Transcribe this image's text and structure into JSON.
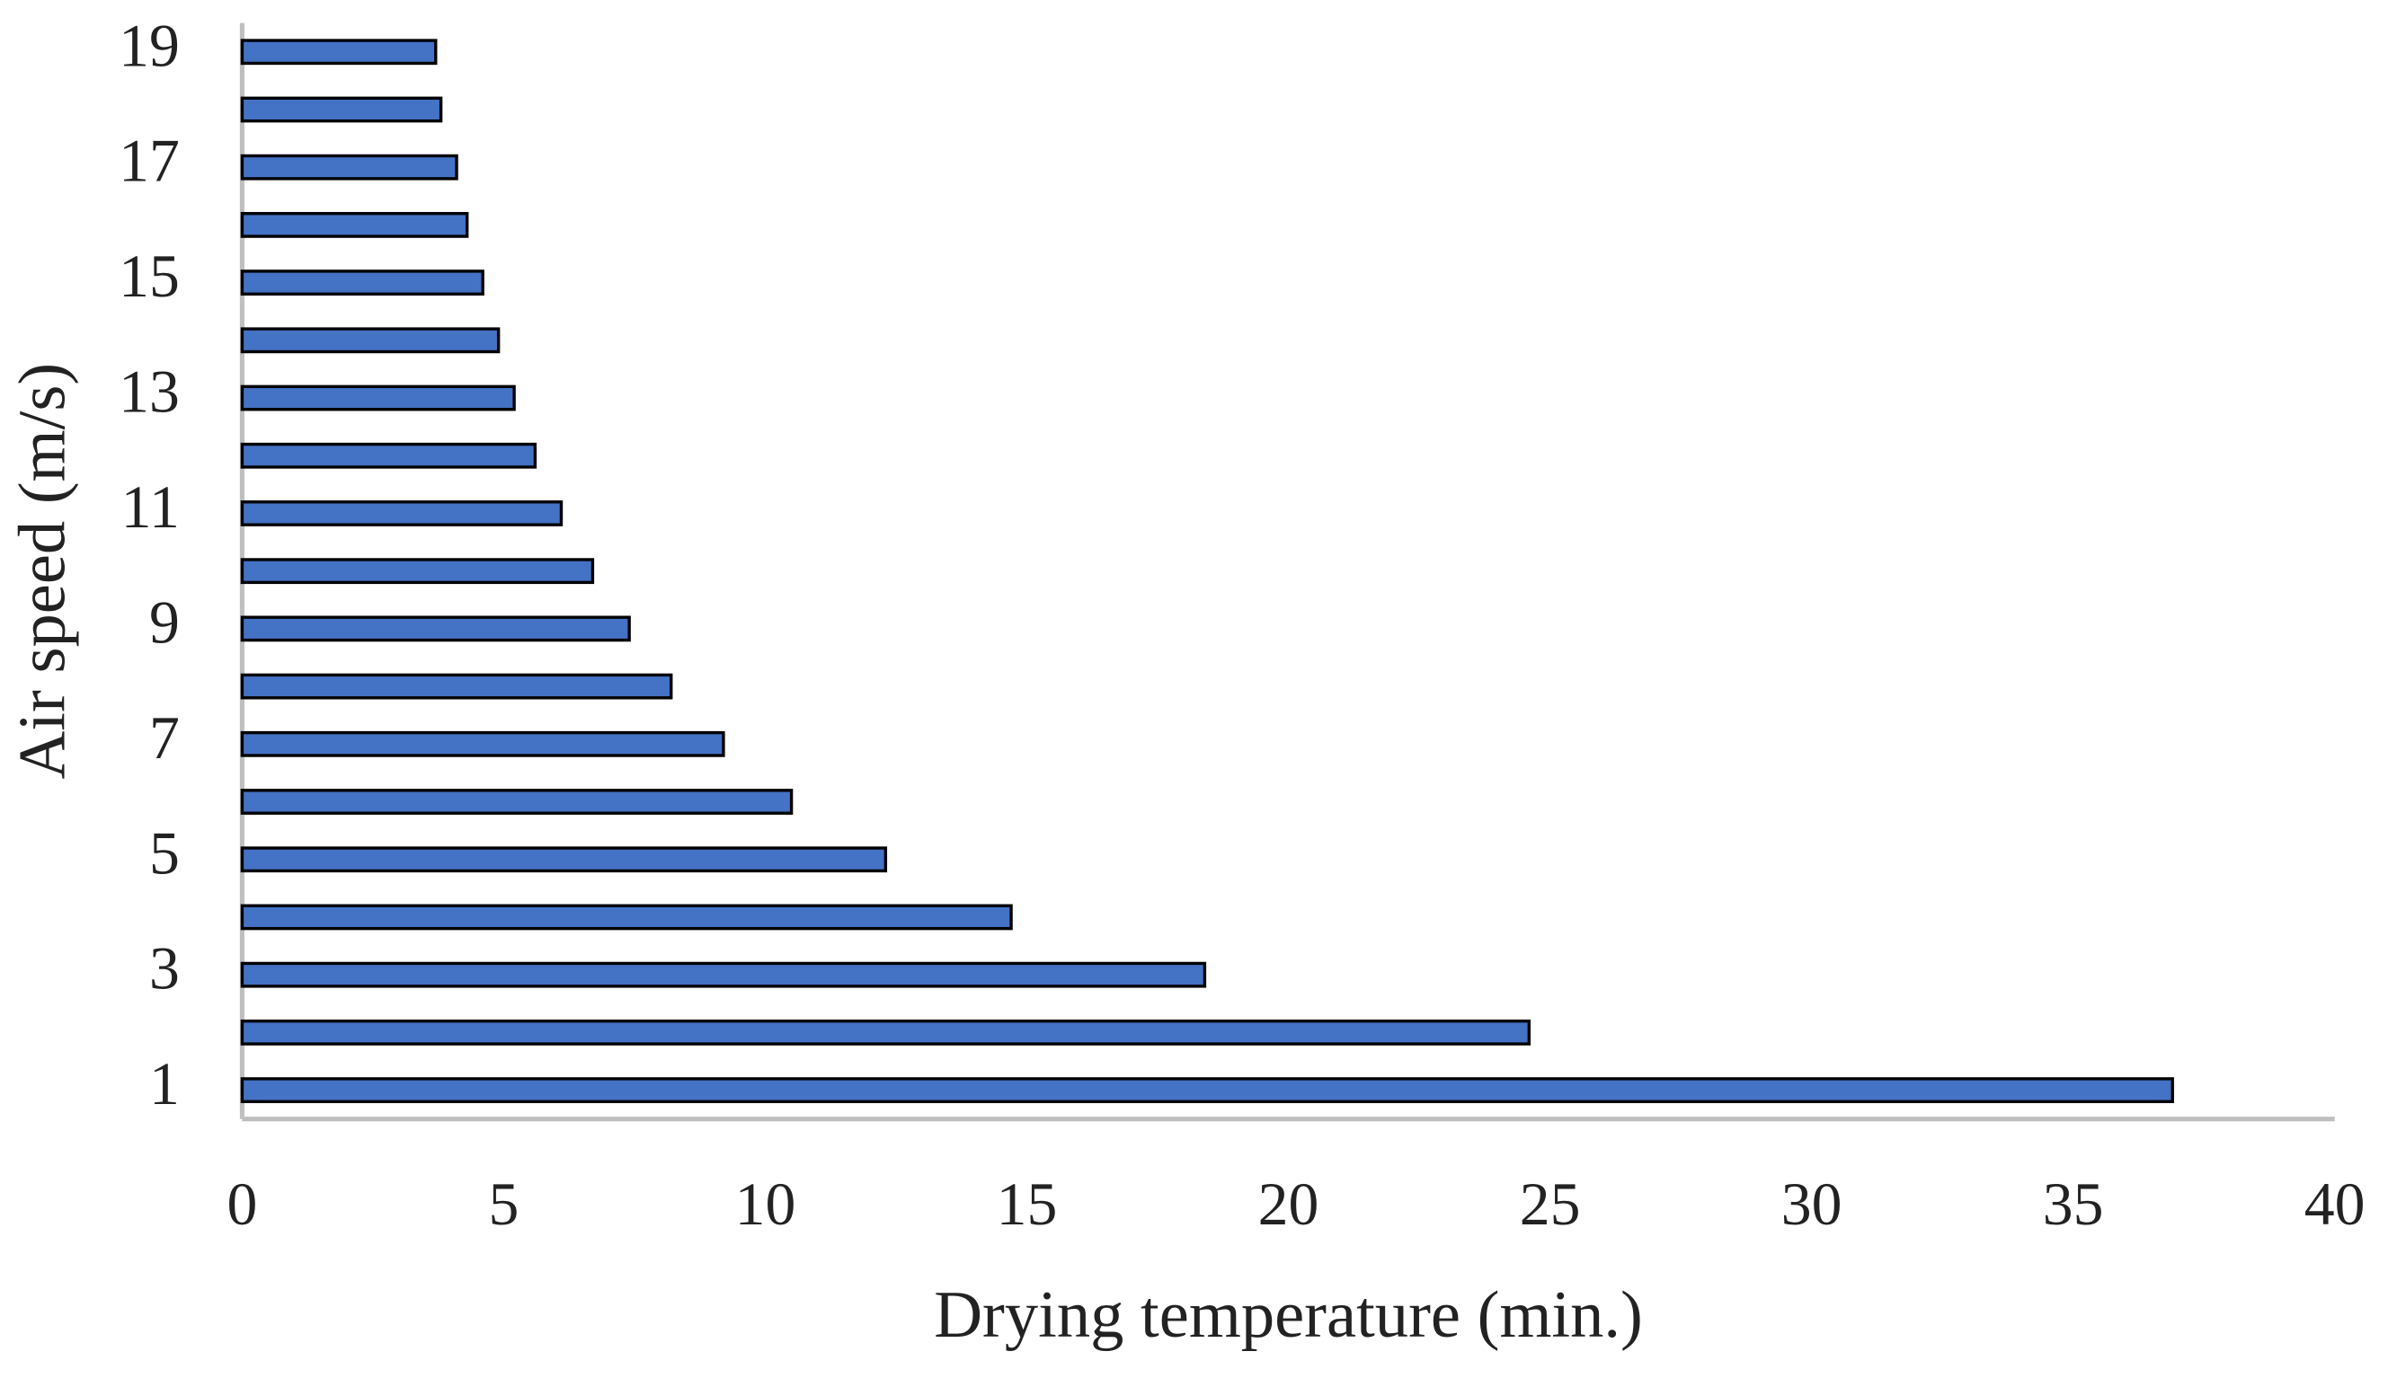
{
  "chart_data": {
    "type": "bar",
    "orientation": "horizontal",
    "x_label": "Drying temperature (min.)",
    "y_label": "Air speed (m/s)",
    "categories": [
      "1",
      null,
      "3",
      null,
      "5",
      null,
      "7",
      null,
      "9",
      null,
      "11",
      null,
      "13",
      null,
      "15",
      null,
      "17",
      null,
      "19"
    ],
    "values": [
      36.9,
      24.6,
      18.4,
      14.7,
      12.3,
      10.5,
      9.2,
      8.2,
      7.4,
      6.7,
      6.1,
      5.6,
      5.2,
      4.9,
      4.6,
      4.3,
      4.1,
      3.8,
      3.7
    ],
    "color": "#4472c4",
    "xlim": [
      0,
      40
    ],
    "xticks": [
      0,
      5,
      10,
      15,
      20,
      25,
      30,
      35,
      40
    ],
    "grid": false
  }
}
